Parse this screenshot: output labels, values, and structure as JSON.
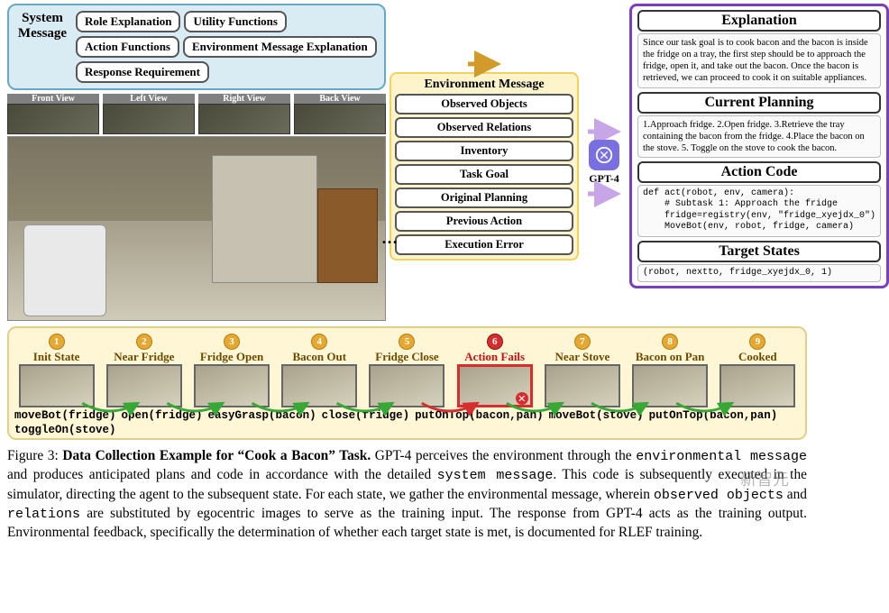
{
  "colors": {
    "sys_bg": "#d9ecf4",
    "sys_border": "#6aa7c4",
    "env_bg": "#fdf4cc",
    "env_border": "#f3d25c",
    "out_border": "#7a3fbf",
    "timeline_bg": "#fff6d6",
    "timeline_border": "#e0ce8a",
    "stepnum_bg": "#e5a933",
    "stepnum_fail_bg": "#d62e2e",
    "gpt_bg": "#7a6fe0",
    "arc_green": "#37a836",
    "arc_red": "#d62e2e"
  },
  "sys": {
    "label": "System Message",
    "buttons": [
      "Role Explanation",
      "Utility Functions",
      "Action Functions",
      "Environment Message Explanation",
      "Response Requirement"
    ]
  },
  "views": [
    "Front View",
    "Left View",
    "Right View",
    "Back View"
  ],
  "env": {
    "title": "Environment Message",
    "items": [
      "Observed Objects",
      "Observed Relations",
      "Inventory",
      "Task Goal",
      "Original Planning",
      "Previous Action",
      "Execution Error"
    ]
  },
  "gpt_label": "GPT-4",
  "output": {
    "sections": [
      {
        "title": "Explanation",
        "body": "Since our task goal is to cook bacon and the bacon is inside the fridge on a tray, the first step should be to approach the fridge, open it, and take out the bacon. Once the bacon is retrieved, we can proceed to cook it on suitable appliances."
      },
      {
        "title": "Current Planning",
        "body": "1.Approach fridge. 2.Open fridge. 3.Retrieve the tray containing the bacon from the fridge. 4.Place the bacon on the stove. 5. Toggle on the stove to cook the bacon."
      },
      {
        "title": "Action Code",
        "code": "def act(robot, env, camera):\n    # Subtask 1: Approach the fridge\n    fridge=registry(env, \"fridge_xyejdx_0\")\n    MoveBot(env, robot, fridge, camera)"
      },
      {
        "title": "Target States",
        "small": "(robot, nextto, fridge_xyejdx_0, 1)"
      }
    ]
  },
  "timeline": {
    "steps": [
      {
        "n": "1",
        "title": "Init State",
        "fail": false
      },
      {
        "n": "2",
        "title": "Near Fridge",
        "fail": false
      },
      {
        "n": "3",
        "title": "Fridge Open",
        "fail": false
      },
      {
        "n": "4",
        "title": "Bacon Out",
        "fail": false
      },
      {
        "n": "5",
        "title": "Fridge Close",
        "fail": false
      },
      {
        "n": "6",
        "title": "Action Fails",
        "fail": true
      },
      {
        "n": "7",
        "title": "Near Stove",
        "fail": false
      },
      {
        "n": "8",
        "title": "Bacon on Pan",
        "fail": false
      },
      {
        "n": "9",
        "title": "Cooked",
        "fail": false
      }
    ],
    "actions": [
      "moveBot(fridge)",
      "open(fridge)",
      "easyGrasp(bacon)",
      "close(fridge)",
      "putOnTop(bacon,pan)",
      "moveBot(stove)",
      "putOnTop(bacon,pan)",
      "toggleOn(stove)"
    ]
  },
  "caption": {
    "figlabel": "Figure 3: ",
    "bold": "Data Collection Example for “Cook a Bacon” Task.",
    "body1": " GPT-4 perceives the environment through the ",
    "code1": "environmental message",
    "body2": " and produces anticipated plans and code in accordance with the detailed ",
    "code2": "system message",
    "body3": ". This code is subsequently executed in the simulator, directing the agent to the subsequent state. For each state, we gather the environmental message, wherein ",
    "code3": "observed objects",
    "body4": " and ",
    "code4": "relations",
    "body5": " are substituted by egocentric images to serve as the training input. The response from GPT-4 acts as the training output. Environmental feedback, specifically the determination of whether each target state is met, is documented for RLEF training."
  },
  "watermark": "新智元"
}
